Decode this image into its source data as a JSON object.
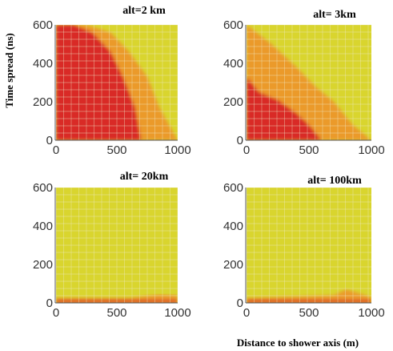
{
  "figure": {
    "ylabel": "Time spread (ns)",
    "xlabel": "Distance to shower axis (m)"
  },
  "colors": {
    "background": "#d9d52e",
    "yellow_light": "#eedf50",
    "orange": "#eb9a2c",
    "red": "#d92b25",
    "grid": "#efeac8"
  },
  "chart_data": [
    {
      "type": "heatmap",
      "title": "alt=2 km",
      "x_ticks": [
        "0",
        "500",
        "1000"
      ],
      "y_ticks": [
        "0",
        "200",
        "400",
        "600"
      ],
      "xlim": [
        0,
        1000
      ],
      "ylim": [
        0,
        600
      ],
      "red_boundary": {
        "distance_m": [
          0,
          150,
          300,
          450,
          550,
          650,
          700,
          1000
        ],
        "time_ns": [
          600,
          600,
          560,
          460,
          330,
          170,
          0,
          0
        ]
      },
      "orange_boundary": {
        "distance_m": [
          0,
          250,
          450,
          600,
          750,
          850,
          1000
        ],
        "time_ns": [
          600,
          600,
          560,
          460,
          330,
          170,
          0
        ]
      }
    },
    {
      "type": "heatmap",
      "title": "alt= 3km",
      "x_ticks": [
        "0",
        "500",
        "1000"
      ],
      "y_ticks": [
        "0",
        "200",
        "400",
        "600"
      ],
      "xlim": [
        0,
        1000
      ],
      "ylim": [
        0,
        600
      ],
      "red_boundary": {
        "distance_m": [
          0,
          100,
          250,
          400,
          500,
          600,
          1000
        ],
        "time_ns": [
          330,
          250,
          210,
          140,
          80,
          0,
          0
        ]
      },
      "orange_boundary": {
        "distance_m": [
          0,
          200,
          400,
          550,
          700,
          850,
          1000
        ],
        "time_ns": [
          600,
          500,
          380,
          280,
          200,
          80,
          0
        ]
      }
    },
    {
      "type": "heatmap",
      "title": "alt= 20km",
      "x_ticks": [
        "0",
        "500",
        "1000"
      ],
      "y_ticks": [
        "0",
        "200",
        "400",
        "600"
      ],
      "xlim": [
        0,
        1000
      ],
      "ylim": [
        0,
        600
      ],
      "red_boundary": {
        "distance_m": [
          0,
          1000
        ],
        "time_ns": [
          15,
          15
        ]
      },
      "orange_boundary": {
        "distance_m": [
          0,
          600,
          850,
          1000
        ],
        "time_ns": [
          25,
          25,
          45,
          40
        ]
      }
    },
    {
      "type": "heatmap",
      "title": "alt= 100km",
      "x_ticks": [
        "0",
        "500",
        "1000"
      ],
      "y_ticks": [
        "0",
        "200",
        "400",
        "600"
      ],
      "xlim": [
        0,
        1000
      ],
      "ylim": [
        0,
        600
      ],
      "red_boundary": {
        "distance_m": [
          0,
          1000
        ],
        "time_ns": [
          15,
          15
        ]
      },
      "orange_boundary": {
        "distance_m": [
          0,
          700,
          800,
          1000
        ],
        "time_ns": [
          25,
          40,
          70,
          30
        ]
      }
    }
  ]
}
